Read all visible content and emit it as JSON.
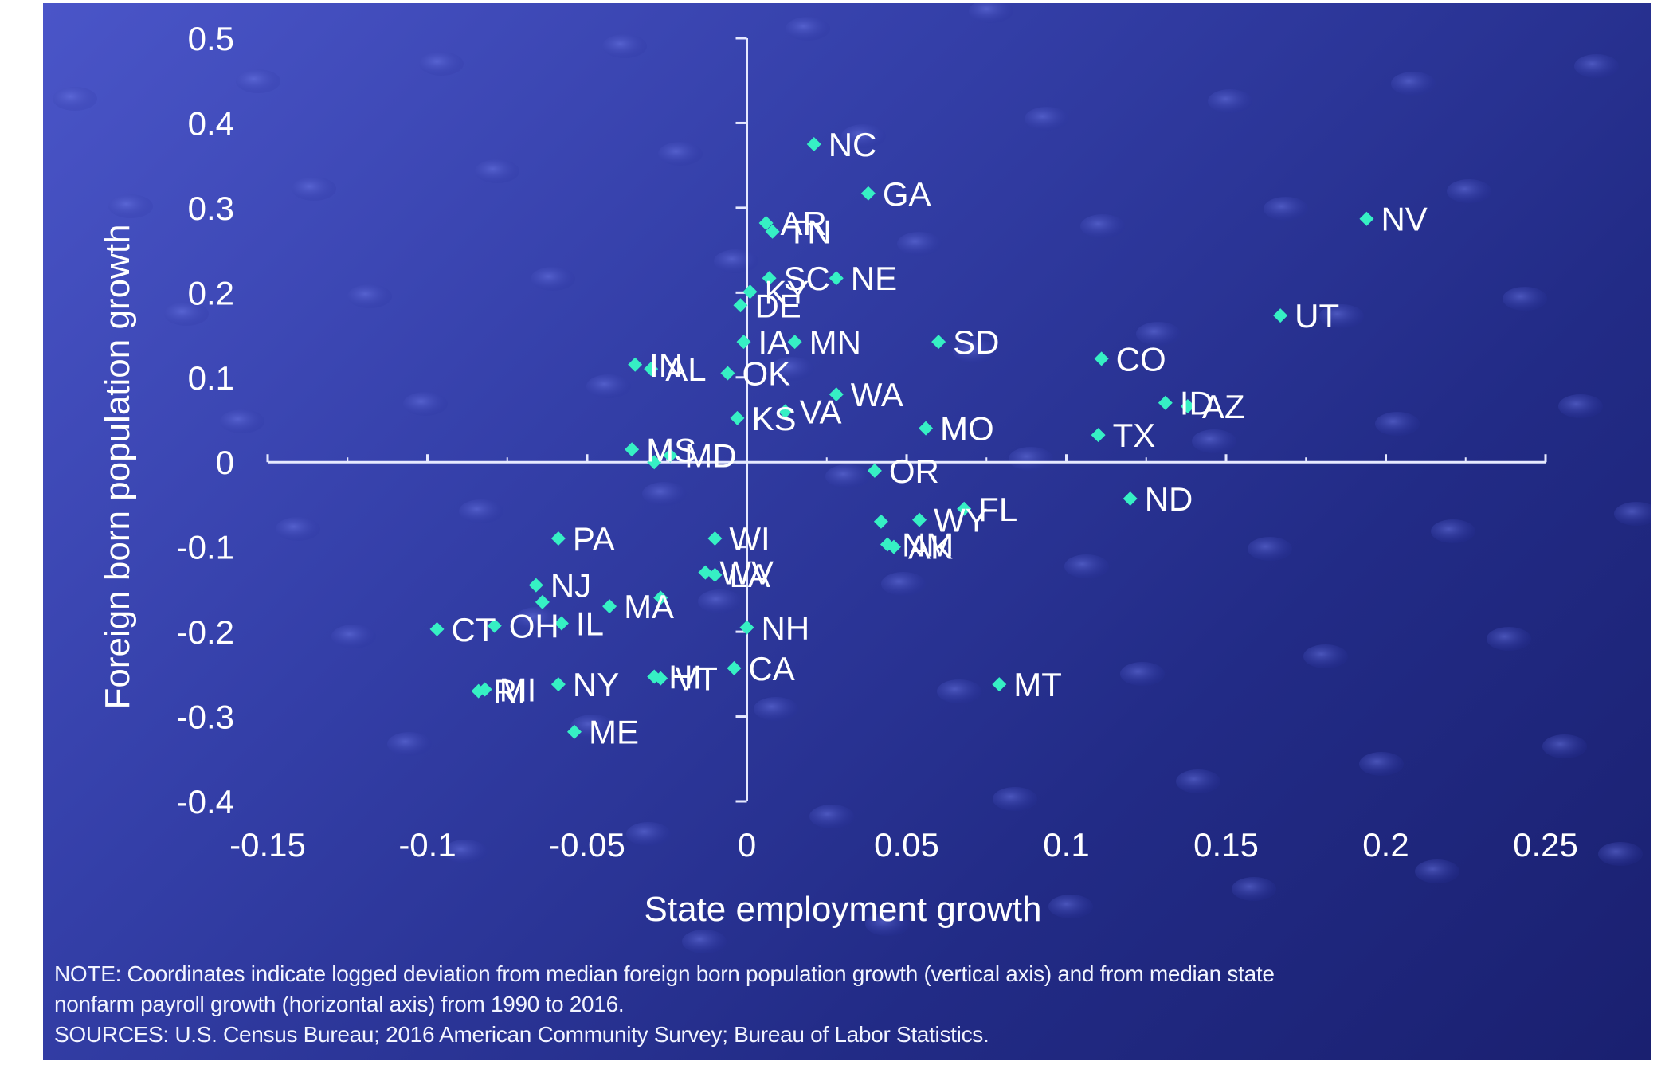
{
  "colors": {
    "marker": "#36f0c4",
    "axis": "#e6e9ff",
    "text": "#ffffff"
  },
  "notes": {
    "line1": "NOTE: Coordinates indicate logged deviation from median foreign born population growth (vertical axis) and from median state",
    "line2": "nonfarm payroll growth (horizontal axis) from 1990 to 2016.",
    "line3": "SOURCES: U.S. Census Bureau; 2016 American Community Survey; Bureau of Labor Statistics."
  },
  "chart_data": {
    "type": "scatter",
    "xlabel": "State employment growth",
    "ylabel": "Foreign born population growth",
    "xlim": [
      -0.15,
      0.25
    ],
    "ylim": [
      -0.4,
      0.5
    ],
    "x_ticks": [
      -0.15,
      -0.1,
      -0.05,
      0,
      0.05,
      0.1,
      0.15,
      0.2,
      0.25
    ],
    "x_tick_labels": [
      "-0.15",
      "-0.1",
      "-0.05",
      "0",
      "0.05",
      "0.1",
      "0.15",
      "0.2",
      "0.25"
    ],
    "y_ticks": [
      -0.4,
      -0.3,
      -0.2,
      -0.1,
      0,
      0.1,
      0.2,
      0.3,
      0.4,
      0.5
    ],
    "y_tick_labels": [
      "-0.4",
      "-0.3",
      "-0.2",
      "-0.1",
      "0",
      "0.1",
      "0.2",
      "0.3",
      "0.4",
      "0.5"
    ],
    "grid": false,
    "marker": "diamond",
    "points": [
      {
        "label": "NC",
        "x": 0.021,
        "y": 0.375
      },
      {
        "label": "GA",
        "x": 0.038,
        "y": 0.317
      },
      {
        "label": "NV",
        "x": 0.194,
        "y": 0.287
      },
      {
        "label": "AR",
        "x": 0.006,
        "y": 0.282
      },
      {
        "label": "TN",
        "x": 0.008,
        "y": 0.272
      },
      {
        "label": "SC",
        "x": 0.007,
        "y": 0.217
      },
      {
        "label": "NE",
        "x": 0.028,
        "y": 0.217
      },
      {
        "label": "KY",
        "x": 0.001,
        "y": 0.201
      },
      {
        "label": "UT",
        "x": 0.167,
        "y": 0.173
      },
      {
        "label": "DE",
        "x": -0.002,
        "y": 0.185
      },
      {
        "label": "MN",
        "x": 0.015,
        "y": 0.142
      },
      {
        "label": "SD",
        "x": 0.06,
        "y": 0.142
      },
      {
        "label": "IA",
        "x": -0.001,
        "y": 0.142
      },
      {
        "label": "CO",
        "x": 0.111,
        "y": 0.122
      },
      {
        "label": "AL",
        "x": -0.03,
        "y": 0.11
      },
      {
        "label": "IN",
        "x": -0.035,
        "y": 0.115
      },
      {
        "label": "OK",
        "x": -0.006,
        "y": 0.105
      },
      {
        "label": "WA",
        "x": 0.028,
        "y": 0.08
      },
      {
        "label": "ID",
        "x": 0.131,
        "y": 0.07
      },
      {
        "label": "AZ",
        "x": 0.138,
        "y": 0.066
      },
      {
        "label": "VA",
        "x": 0.012,
        "y": 0.06
      },
      {
        "label": "KS",
        "x": -0.003,
        "y": 0.052
      },
      {
        "label": "TX",
        "x": 0.11,
        "y": 0.032
      },
      {
        "label": "MO",
        "x": 0.056,
        "y": 0.04
      },
      {
        "label": "MS",
        "x": -0.036,
        "y": 0.015
      },
      {
        "label": "MD",
        "x": -0.024,
        "y": 0.008
      },
      {
        "label": "",
        "x": -0.029,
        "y": 0.0
      },
      {
        "label": "OR",
        "x": 0.04,
        "y": -0.01
      },
      {
        "label": "ND",
        "x": 0.12,
        "y": -0.043
      },
      {
        "label": "FL",
        "x": 0.068,
        "y": -0.055
      },
      {
        "label": "WY",
        "x": 0.054,
        "y": -0.068
      },
      {
        "label": "WI",
        "x": -0.01,
        "y": -0.09
      },
      {
        "label": "PA",
        "x": -0.059,
        "y": -0.09
      },
      {
        "label": "",
        "x": 0.042,
        "y": -0.07
      },
      {
        "label": "NM",
        "x": 0.044,
        "y": -0.097
      },
      {
        "label": "AK",
        "x": 0.046,
        "y": -0.1
      },
      {
        "label": "WV",
        "x": -0.013,
        "y": -0.13
      },
      {
        "label": "LA",
        "x": -0.01,
        "y": -0.133
      },
      {
        "label": "NJ",
        "x": -0.066,
        "y": -0.145
      },
      {
        "label": "",
        "x": -0.064,
        "y": -0.165
      },
      {
        "label": "",
        "x": -0.027,
        "y": -0.16
      },
      {
        "label": "MA",
        "x": -0.043,
        "y": -0.17
      },
      {
        "label": "IL",
        "x": -0.058,
        "y": -0.19
      },
      {
        "label": "CT",
        "x": -0.097,
        "y": -0.197
      },
      {
        "label": "OH",
        "x": -0.079,
        "y": -0.193
      },
      {
        "label": "NH",
        "x": 0.0,
        "y": -0.195
      },
      {
        "label": "CA",
        "x": -0.004,
        "y": -0.243
      },
      {
        "label": "HI",
        "x": -0.029,
        "y": -0.253
      },
      {
        "label": "VT",
        "x": -0.027,
        "y": -0.255
      },
      {
        "label": "NY",
        "x": -0.059,
        "y": -0.262
      },
      {
        "label": "MT",
        "x": 0.079,
        "y": -0.262
      },
      {
        "label": "MI",
        "x": -0.082,
        "y": -0.268
      },
      {
        "label": "RI",
        "x": -0.084,
        "y": -0.27
      },
      {
        "label": "ME",
        "x": -0.054,
        "y": -0.318
      }
    ]
  }
}
